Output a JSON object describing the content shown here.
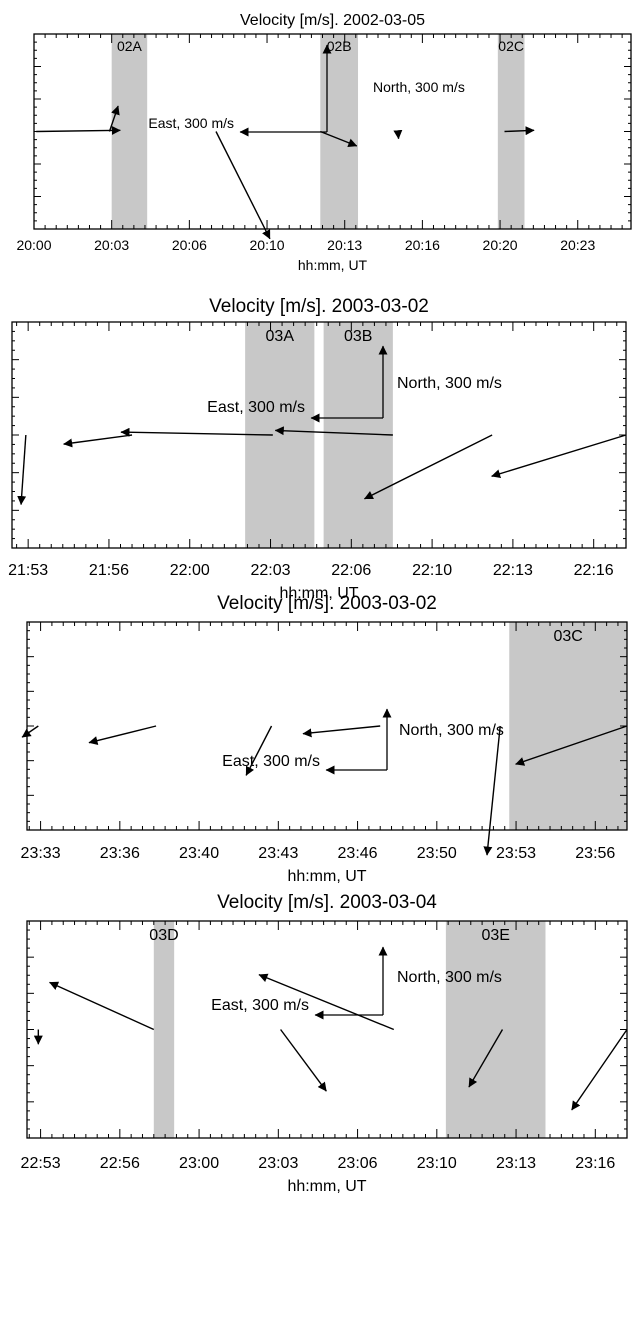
{
  "chart_data": [
    {
      "type": "vector-timeseries",
      "title": "Velocity [m/s]. 2002-03-05",
      "xlabel": "hh:mm, UT",
      "tick_labels": [
        "20:00",
        "20:03",
        "20:06",
        "20:10",
        "20:13",
        "20:16",
        "20:20",
        "20:23"
      ],
      "tick_values_min": [
        0,
        3.5,
        7,
        10.5,
        14,
        17.5,
        21,
        24.5
      ],
      "x_range_min": [
        0,
        26.9
      ],
      "intervals": [
        {
          "name": "02A",
          "start_min": 3.5,
          "end_min": 5.1
        },
        {
          "name": "02B",
          "start_min": 12.9,
          "end_min": 14.6
        },
        {
          "name": "02C",
          "start_min": 20.9,
          "end_min": 22.1
        }
      ],
      "scale_bar": {
        "east_label": "East, 300 m/s",
        "north_label": "North, 300 m/s",
        "magnitude": 300
      },
      "vectors": [
        {
          "t_min": 0.1,
          "ve": 290,
          "vn": 4
        },
        {
          "t_min": 3.4,
          "ve": 30,
          "vn": 88
        },
        {
          "t_min": 8.2,
          "ve": 186,
          "vn": -370
        },
        {
          "t_min": 12.9,
          "ve": 126,
          "vn": -50
        },
        {
          "t_min": 16.4,
          "ve": 2,
          "vn": -25
        },
        {
          "t_min": 21.2,
          "ve": 102,
          "vn": 4
        }
      ]
    },
    {
      "type": "vector-timeseries",
      "title": "Velocity [m/s]. 2003-03-02",
      "xlabel": "hh:mm, UT",
      "tick_labels": [
        "21:53",
        "21:56",
        "22:00",
        "22:03",
        "22:06",
        "22:10",
        "22:13",
        "22:16"
      ],
      "tick_values_min": [
        0,
        3.5,
        7,
        10.5,
        14,
        17.5,
        21,
        24.5
      ],
      "x_range_min": [
        -0.7,
        25.9
      ],
      "intervals": [
        {
          "name": "03A",
          "start_min": 9.4,
          "end_min": 12.4
        },
        {
          "name": "03B",
          "start_min": 12.8,
          "end_min": 15.8
        }
      ],
      "scale_bar": {
        "east_label": "East, 300 m/s",
        "north_label": "North, 300 m/s",
        "magnitude": 300
      },
      "vectors": [
        {
          "t_min": -0.1,
          "ve": -20,
          "vn": -290
        },
        {
          "t_min": 4.5,
          "ve": -285,
          "vn": -38
        },
        {
          "t_min": 10.6,
          "ve": -633,
          "vn": 12
        },
        {
          "t_min": 15.8,
          "ve": -490,
          "vn": 19
        },
        {
          "t_min": 20.1,
          "ve": -532,
          "vn": -266
        },
        {
          "t_min": 25.9,
          "ve": -560,
          "vn": -172
        }
      ]
    },
    {
      "type": "vector-timeseries",
      "title": "Velocity [m/s]. 2003-03-02",
      "xlabel": "hh:mm, UT",
      "tick_labels": [
        "23:33",
        "23:36",
        "23:40",
        "23:43",
        "23:46",
        "23:50",
        "23:53",
        "23:56"
      ],
      "tick_values_min": [
        0,
        3.5,
        7,
        10.5,
        14,
        17.5,
        21,
        24.5
      ],
      "x_range_min": [
        -0.6,
        25.9
      ],
      "intervals": [
        {
          "name": "03C",
          "start_min": 20.7,
          "end_min": 25.9
        }
      ],
      "scale_bar": {
        "east_label": "East, 300 m/s",
        "north_label": "North, 300 m/s",
        "magnitude": 300
      },
      "vectors": [
        {
          "t_min": -0.1,
          "ve": -80,
          "vn": -55
        },
        {
          "t_min": 5.1,
          "ve": -330,
          "vn": -82
        },
        {
          "t_min": 10.2,
          "ve": -125,
          "vn": -243
        },
        {
          "t_min": 15.0,
          "ve": -380,
          "vn": -38
        },
        {
          "t_min": 20.3,
          "ve": -65,
          "vn": -635
        },
        {
          "t_min": 25.9,
          "ve": -548,
          "vn": -188
        }
      ]
    },
    {
      "type": "vector-timeseries",
      "title": "Velocity [m/s]. 2003-03-04",
      "xlabel": "hh:mm, UT",
      "tick_labels": [
        "22:53",
        "22:56",
        "23:00",
        "23:03",
        "23:06",
        "23:10",
        "23:13",
        "23:16"
      ],
      "tick_values_min": [
        0,
        3.5,
        7,
        10.5,
        14,
        17.5,
        21,
        24.5
      ],
      "x_range_min": [
        -0.6,
        25.9
      ],
      "intervals": [
        {
          "name": "03D",
          "start_min": 5.0,
          "end_min": 5.9
        },
        {
          "name": "03E",
          "start_min": 17.9,
          "end_min": 22.3
        }
      ],
      "scale_bar": {
        "east_label": "East, 300 m/s",
        "north_label": "North, 300 m/s",
        "magnitude": 300
      },
      "vectors": [
        {
          "t_min": -0.1,
          "ve": 0,
          "vn": -65
        },
        {
          "t_min": 5.0,
          "ve": -460,
          "vn": 208
        },
        {
          "t_min": 15.6,
          "ve": -595,
          "vn": 242
        },
        {
          "t_min": 10.6,
          "ve": 202,
          "vn": -272
        },
        {
          "t_min": 20.4,
          "ve": -148,
          "vn": -254
        },
        {
          "t_min": 25.9,
          "ve": -244,
          "vn": -355
        }
      ]
    }
  ]
}
